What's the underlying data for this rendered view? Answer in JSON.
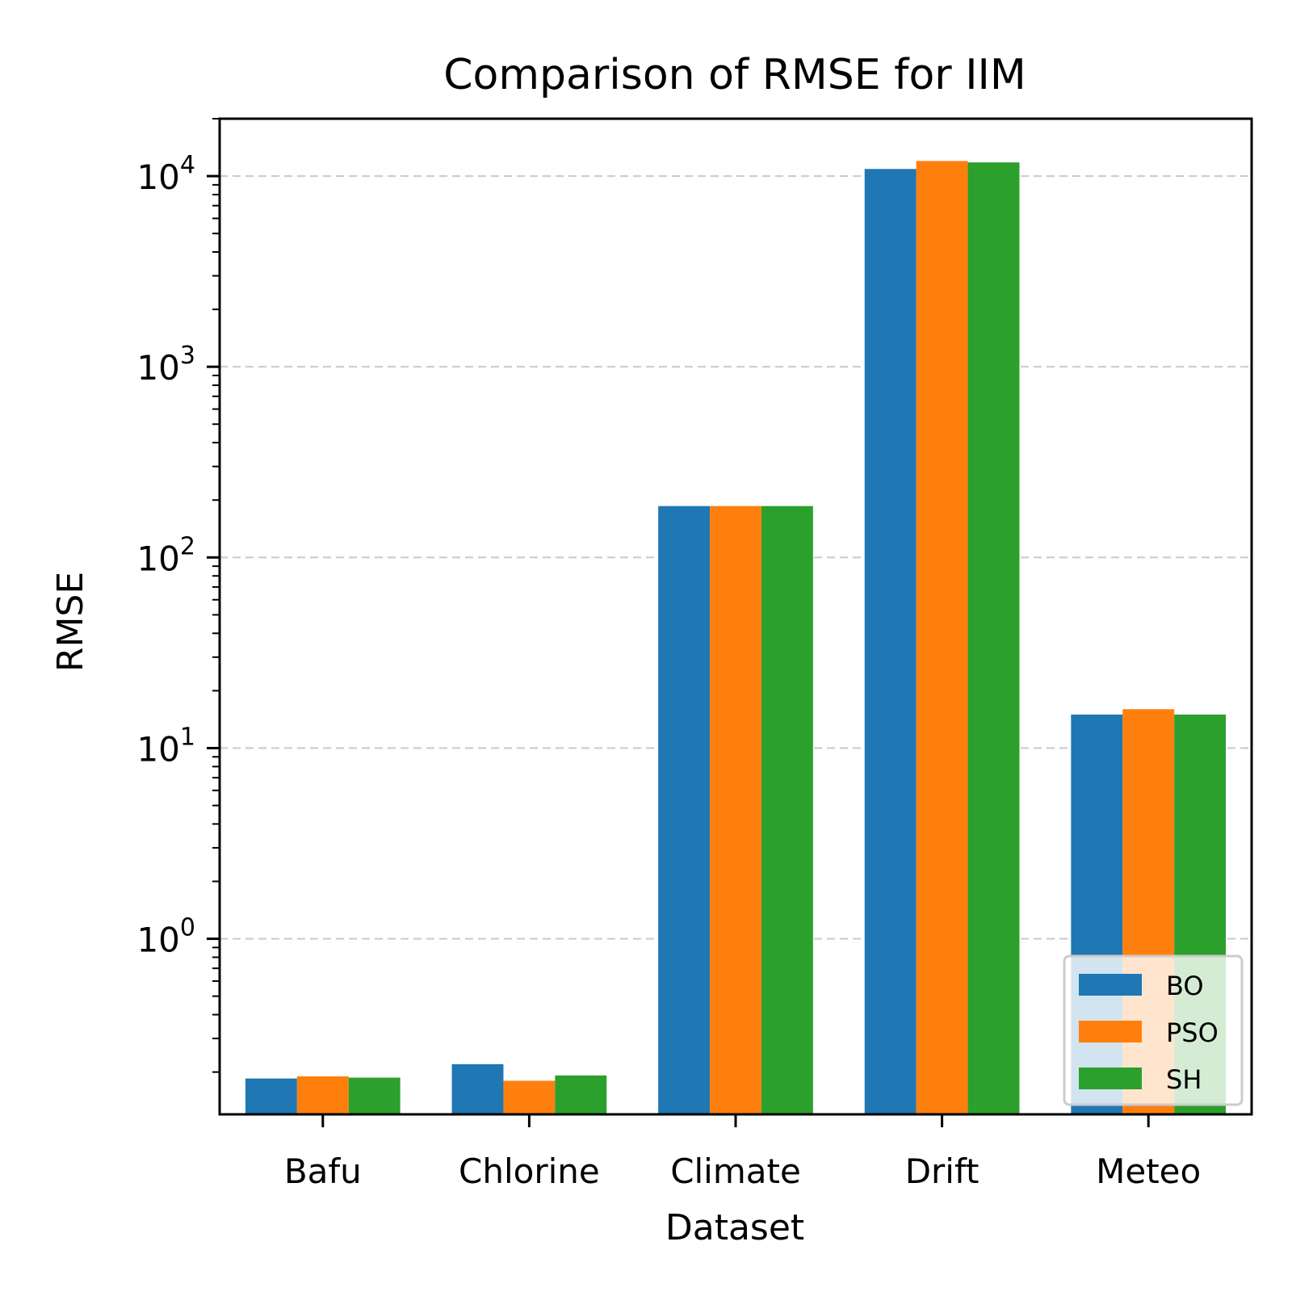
{
  "chart_data": {
    "type": "bar",
    "title": "Comparison of RMSE for IIM",
    "xlabel": "Dataset",
    "ylabel": "RMSE",
    "yscale": "log",
    "ylim": [
      0.12,
      20000
    ],
    "y_ticks": [
      {
        "value": 1,
        "base": "10",
        "exp": "0"
      },
      {
        "value": 10,
        "base": "10",
        "exp": "1"
      },
      {
        "value": 100,
        "base": "10",
        "exp": "2"
      },
      {
        "value": 1000,
        "base": "10",
        "exp": "3"
      },
      {
        "value": 10000,
        "base": "10",
        "exp": "4"
      }
    ],
    "grid": "y-major-dashed",
    "legend_position": "bottom-right",
    "categories": [
      "Bafu",
      "Chlorine",
      "Climate",
      "Drift",
      "Meteo"
    ],
    "series": [
      {
        "name": "BO",
        "color": "#1f77b4",
        "values": [
          0.185,
          0.22,
          186,
          10900,
          15
        ]
      },
      {
        "name": "PSO",
        "color": "#ff7f0e",
        "values": [
          0.19,
          0.18,
          186,
          12000,
          16
        ]
      },
      {
        "name": "SH",
        "color": "#2ca02c",
        "values": [
          0.187,
          0.192,
          186,
          11800,
          15
        ]
      }
    ]
  }
}
